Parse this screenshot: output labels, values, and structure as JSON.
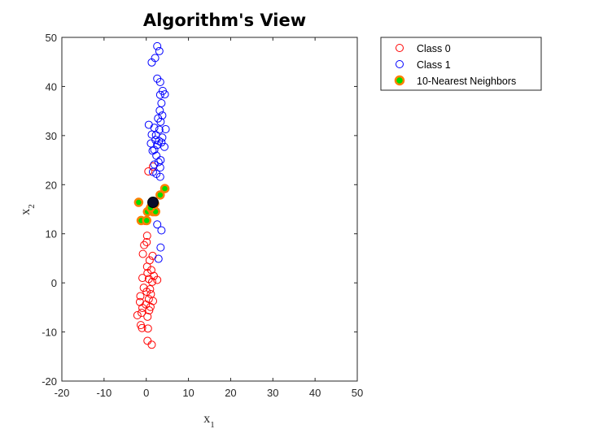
{
  "chart_data": {
    "type": "scatter",
    "title": "Algorithm's View",
    "xlabel": "x",
    "xlabel_sub": "1",
    "ylabel": "x",
    "ylabel_sub": "2",
    "xlim": [
      -20,
      50
    ],
    "ylim": [
      -20,
      50
    ],
    "xticks": [
      -20,
      -10,
      0,
      10,
      20,
      30,
      40,
      50
    ],
    "yticks": [
      -20,
      -10,
      0,
      10,
      20,
      30,
      40,
      50
    ],
    "grid": false,
    "legend_position": "outside-top-right",
    "series": [
      {
        "name": "Class 0",
        "color": "#ff0000",
        "marker": "open-circle",
        "points": [
          [
            0.5,
            22.7
          ],
          [
            1.6,
            23.7
          ],
          [
            0.2,
            9.6
          ],
          [
            0.1,
            8.3
          ],
          [
            -0.5,
            7.7
          ],
          [
            -0.8,
            5.9
          ],
          [
            1.5,
            5.5
          ],
          [
            0.8,
            4.6
          ],
          [
            0.2,
            3.3
          ],
          [
            1.2,
            2.6
          ],
          [
            0.3,
            2.0
          ],
          [
            1.8,
            1.4
          ],
          [
            -0.9,
            1.0
          ],
          [
            0.6,
            0.8
          ],
          [
            2.6,
            0.6
          ],
          [
            1.4,
            0.2
          ],
          [
            -0.6,
            -1.0
          ],
          [
            0.9,
            -1.3
          ],
          [
            0.1,
            -1.8
          ],
          [
            1.1,
            -2.3
          ],
          [
            -1.4,
            -2.7
          ],
          [
            0.6,
            -3.3
          ],
          [
            1.6,
            -3.7
          ],
          [
            -1.5,
            -3.9
          ],
          [
            -0.1,
            -4.4
          ],
          [
            1.0,
            -4.9
          ],
          [
            -0.9,
            -5.1
          ],
          [
            0.7,
            -5.6
          ],
          [
            -1.1,
            -6.1
          ],
          [
            -2.1,
            -6.6
          ],
          [
            0.3,
            -6.9
          ],
          [
            -1.3,
            -8.6
          ],
          [
            -1.0,
            -9.2
          ],
          [
            0.4,
            -9.3
          ],
          [
            0.3,
            -11.8
          ],
          [
            1.3,
            -12.6
          ],
          [
            -0.3,
            12.6
          ],
          [
            2.3,
            14.6
          ]
        ]
      },
      {
        "name": "Class 1",
        "color": "#0000ff",
        "marker": "open-circle",
        "points": [
          [
            2.6,
            48.2
          ],
          [
            3.1,
            47.2
          ],
          [
            2.1,
            45.8
          ],
          [
            1.3,
            44.9
          ],
          [
            2.6,
            41.6
          ],
          [
            3.3,
            40.9
          ],
          [
            3.9,
            39.1
          ],
          [
            3.3,
            38.3
          ],
          [
            4.4,
            38.4
          ],
          [
            3.6,
            36.6
          ],
          [
            3.2,
            35.1
          ],
          [
            3.8,
            34.1
          ],
          [
            2.8,
            33.5
          ],
          [
            3.4,
            32.8
          ],
          [
            0.6,
            32.2
          ],
          [
            1.9,
            31.6
          ],
          [
            3.1,
            31.2
          ],
          [
            4.6,
            31.3
          ],
          [
            1.3,
            30.2
          ],
          [
            2.3,
            30.1
          ],
          [
            3.8,
            29.6
          ],
          [
            2.2,
            29.1
          ],
          [
            3.0,
            28.9
          ],
          [
            3.6,
            28.6
          ],
          [
            1.1,
            28.4
          ],
          [
            2.6,
            28.1
          ],
          [
            4.3,
            27.7
          ],
          [
            1.9,
            27.1
          ],
          [
            1.5,
            26.9
          ],
          [
            2.4,
            25.9
          ],
          [
            3.4,
            25.0
          ],
          [
            2.9,
            24.6
          ],
          [
            1.9,
            24.1
          ],
          [
            3.3,
            23.5
          ],
          [
            1.6,
            22.6
          ],
          [
            2.4,
            22.2
          ],
          [
            3.3,
            21.6
          ],
          [
            2.6,
            11.9
          ],
          [
            3.6,
            10.7
          ],
          [
            3.4,
            7.2
          ],
          [
            2.9,
            4.9
          ]
        ]
      },
      {
        "name": "10-Nearest Neighbors",
        "color": "#00dd00",
        "edge_color": "#ff7f00",
        "marker": "filled-circle",
        "points": [
          [
            -1.8,
            16.4
          ],
          [
            4.4,
            19.2
          ],
          [
            3.3,
            17.9
          ],
          [
            0.3,
            14.5
          ],
          [
            1.6,
            14.5
          ],
          [
            2.2,
            14.5
          ],
          [
            -1.2,
            12.7
          ],
          [
            0.1,
            12.7
          ],
          [
            2.0,
            16.1
          ],
          [
            1.0,
            15.3
          ]
        ]
      }
    ],
    "query_point": [
      1.6,
      16.4
    ]
  }
}
